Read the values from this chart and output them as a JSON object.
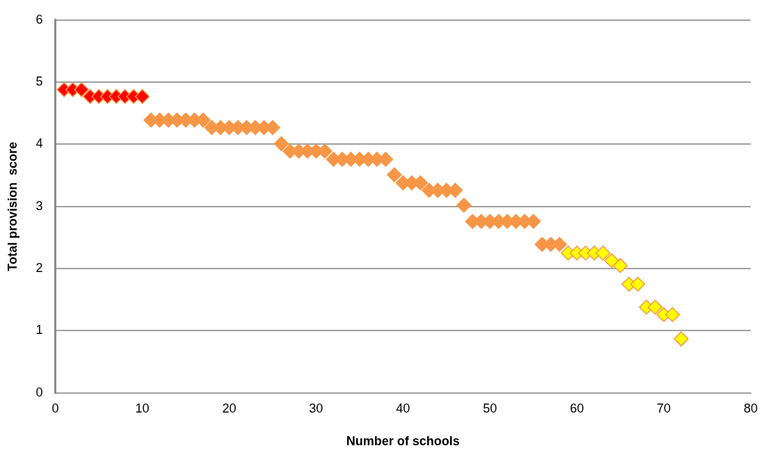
{
  "chart_data": {
    "type": "scatter",
    "xlabel": "Number of schools",
    "ylabel": "Total provision  score",
    "xlim": [
      0,
      80
    ],
    "xticks": [
      0,
      10,
      20,
      30,
      40,
      50,
      60,
      70,
      80
    ],
    "ylim": [
      0,
      6
    ],
    "yticks": [
      0,
      1,
      2,
      3,
      4,
      5,
      6
    ],
    "grid": "y",
    "legend": false,
    "marker": "diamond",
    "series": [
      {
        "color": "#ff0000",
        "x": [
          1,
          2,
          3,
          4,
          5,
          6,
          7,
          8,
          9,
          10
        ],
        "values": [
          4.88,
          4.88,
          4.88,
          4.77,
          4.77,
          4.77,
          4.77,
          4.77,
          4.77,
          4.77
        ]
      },
      {
        "color": "#f79646",
        "x": [
          11,
          12,
          13,
          14,
          15,
          16,
          17,
          18,
          19,
          20,
          21,
          22,
          23,
          24,
          25,
          26,
          27,
          28,
          29,
          30,
          31,
          32,
          33,
          34,
          35,
          36,
          37,
          38,
          39,
          40,
          41,
          42,
          43,
          44,
          45,
          46,
          47,
          48,
          49,
          50,
          51,
          52,
          53,
          54,
          55,
          56,
          57,
          58
        ],
        "values": [
          4.39,
          4.39,
          4.39,
          4.39,
          4.39,
          4.39,
          4.39,
          4.27,
          4.27,
          4.27,
          4.27,
          4.27,
          4.27,
          4.27,
          4.27,
          4.01,
          3.89,
          3.89,
          3.89,
          3.89,
          3.89,
          3.76,
          3.76,
          3.76,
          3.76,
          3.76,
          3.76,
          3.76,
          3.51,
          3.38,
          3.38,
          3.38,
          3.26,
          3.26,
          3.26,
          3.26,
          3.02,
          2.76,
          2.76,
          2.76,
          2.76,
          2.76,
          2.76,
          2.76,
          2.76,
          2.39,
          2.39,
          2.39
        ]
      },
      {
        "color": "#ffff00",
        "x": [
          59,
          60,
          61,
          62,
          63,
          64,
          65,
          66,
          67,
          68,
          69,
          70,
          71,
          72
        ],
        "values": [
          2.25,
          2.25,
          2.25,
          2.25,
          2.25,
          2.13,
          2.05,
          1.75,
          1.75,
          1.38,
          1.38,
          1.26,
          1.26,
          0.87
        ]
      }
    ]
  }
}
